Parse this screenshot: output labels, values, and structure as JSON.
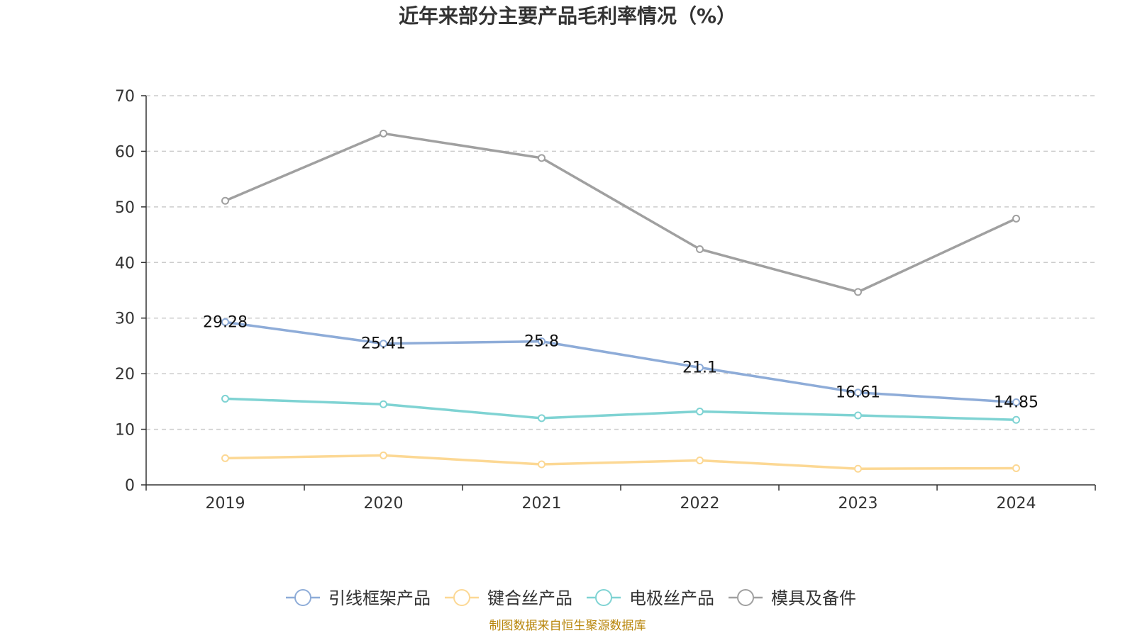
{
  "chart_data": {
    "type": "line",
    "title": "近年来部分主要产品毛利率情况（%）",
    "categories": [
      "2019",
      "2020",
      "2021",
      "2022",
      "2023",
      "2024"
    ],
    "ylim": [
      0,
      70
    ],
    "yticks": [
      0,
      10,
      20,
      30,
      40,
      50,
      60,
      70
    ],
    "grid": "horizontal-dashed",
    "legend_position": "bottom",
    "series": [
      {
        "name": "引线框架产品",
        "color": "#8eacd8",
        "values": [
          29.28,
          25.41,
          25.8,
          21.1,
          16.61,
          14.85
        ],
        "show_labels": true
      },
      {
        "name": "键合丝产品",
        "color": "#fcd894",
        "values": [
          4.8,
          5.3,
          3.7,
          4.4,
          2.9,
          3.0
        ],
        "show_labels": false
      },
      {
        "name": "电极丝产品",
        "color": "#7fd3d3",
        "values": [
          15.5,
          14.5,
          12.0,
          13.2,
          12.5,
          11.7
        ],
        "show_labels": false
      },
      {
        "name": "模具及备件",
        "color": "#a0a0a0",
        "values": [
          51.1,
          63.2,
          58.8,
          42.4,
          34.7,
          47.9
        ],
        "show_labels": false
      }
    ]
  },
  "source": "制图数据来自恒生聚源数据库"
}
